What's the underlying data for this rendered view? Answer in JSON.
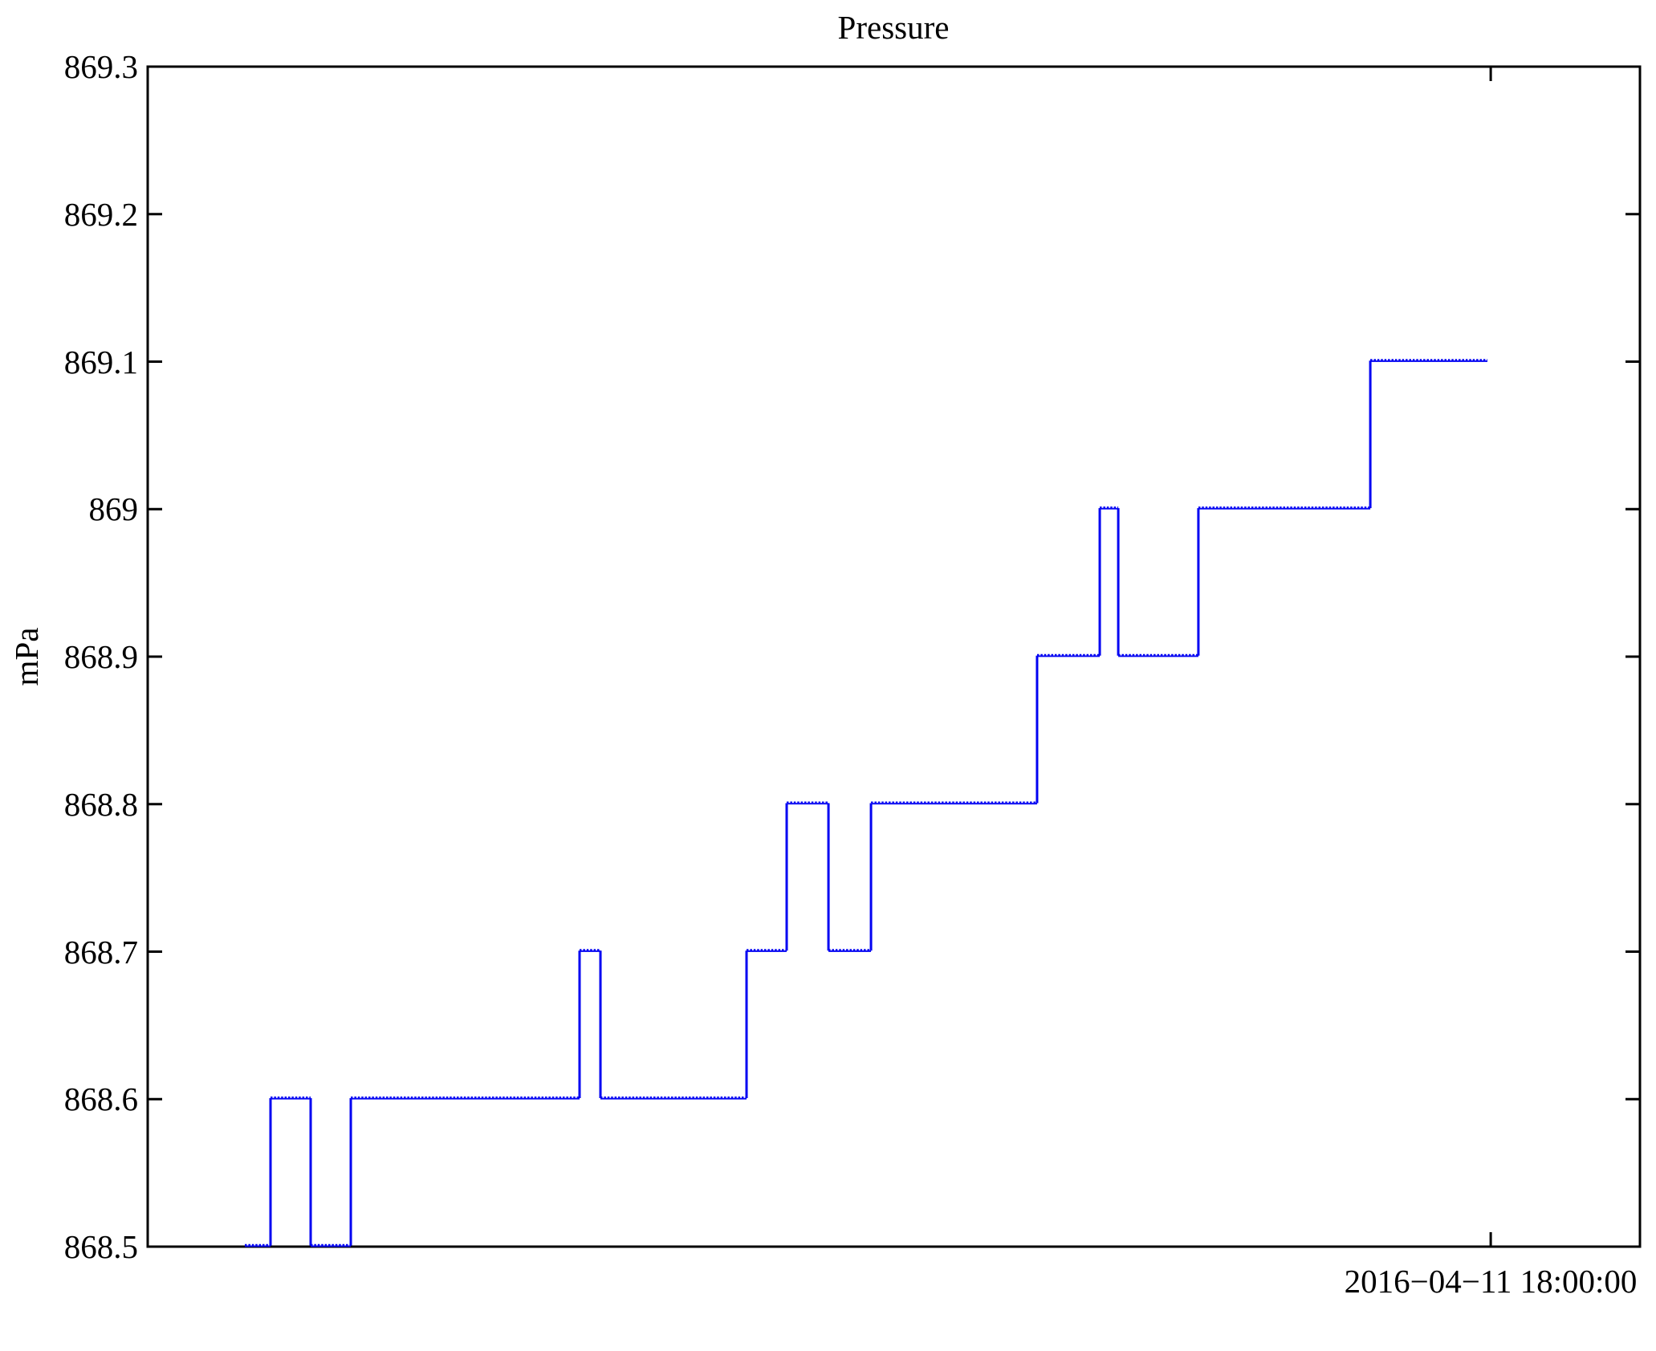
{
  "chart_data": {
    "type": "line",
    "subtype": "step-post",
    "title": "Pressure",
    "ylabel": "mPa",
    "grid": false,
    "legend": null,
    "background": "#ffffff",
    "axis_color": "#000000",
    "line_color": "#0202f2",
    "ylim": [
      868.5,
      869.3
    ],
    "yticks": [
      {
        "value": 868.5,
        "label": "868.5"
      },
      {
        "value": 868.6,
        "label": "868.6"
      },
      {
        "value": 868.7,
        "label": "868.7"
      },
      {
        "value": 868.8,
        "label": "868.8"
      },
      {
        "value": 868.9,
        "label": "868.9"
      },
      {
        "value": 869.0,
        "label": "869"
      },
      {
        "value": 869.1,
        "label": "869.1"
      },
      {
        "value": 869.2,
        "label": "869.2"
      },
      {
        "value": 869.3,
        "label": "869.3"
      }
    ],
    "x_axis": {
      "tick_label": "2016−04−11 18:00:00",
      "tick_frac": 0.9
    },
    "series": [
      {
        "name": "Pressure",
        "end_frac": 0.8978,
        "steps": [
          {
            "frac": 0.0651,
            "value": 868.5
          },
          {
            "frac": 0.0823,
            "value": 868.6
          },
          {
            "frac": 0.1092,
            "value": 868.5
          },
          {
            "frac": 0.1361,
            "value": 868.6
          },
          {
            "frac": 0.2894,
            "value": 868.7
          },
          {
            "frac": 0.3034,
            "value": 868.6
          },
          {
            "frac": 0.4013,
            "value": 868.7
          },
          {
            "frac": 0.4282,
            "value": 868.8
          },
          {
            "frac": 0.4562,
            "value": 868.7
          },
          {
            "frac": 0.4847,
            "value": 868.8
          },
          {
            "frac": 0.596,
            "value": 868.9
          },
          {
            "frac": 0.638,
            "value": 869.0
          },
          {
            "frac": 0.6504,
            "value": 868.9
          },
          {
            "frac": 0.7041,
            "value": 869.0
          },
          {
            "frac": 0.8193,
            "value": 869.1
          }
        ]
      }
    ]
  }
}
